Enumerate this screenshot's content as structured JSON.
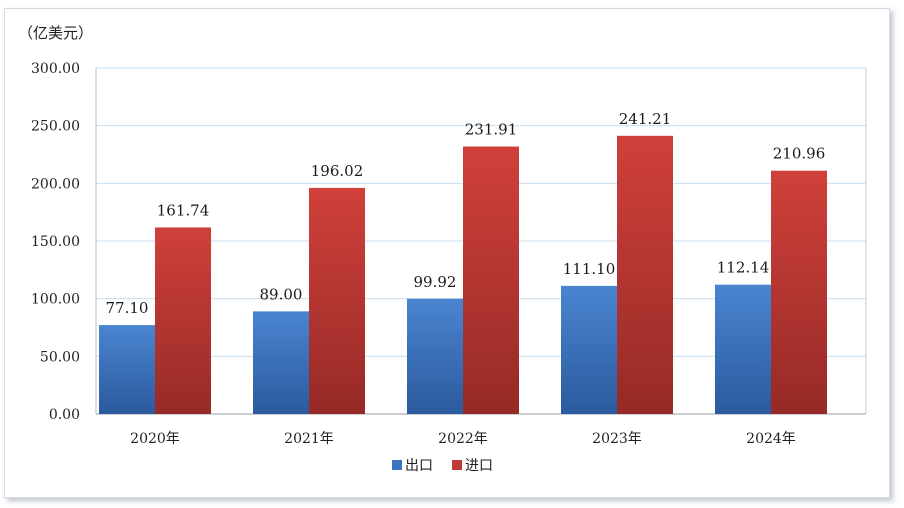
{
  "chart_data": {
    "type": "bar",
    "unit_label": "（亿美元）",
    "categories": [
      "2020年",
      "2021年",
      "2022年",
      "2023年",
      "2024年"
    ],
    "series": [
      {
        "name": "出口",
        "color": "#3a73c0",
        "values": [
          77.1,
          89.0,
          99.92,
          111.1,
          112.14
        ],
        "labels": [
          "77.10",
          "89.00",
          "99.92",
          "111.10",
          "112.14"
        ]
      },
      {
        "name": "进口",
        "color": "#c23a36",
        "values": [
          161.74,
          196.02,
          231.91,
          241.21,
          210.96
        ],
        "labels": [
          "161.74",
          "196.02",
          "231.91",
          "241.21",
          "210.96"
        ]
      }
    ],
    "ylim": [
      0,
      300
    ],
    "yticks": [
      "0.00",
      "50.00",
      "100.00",
      "150.00",
      "200.00",
      "250.00",
      "300.00"
    ],
    "grid": true,
    "legend_position": "bottom-center"
  }
}
